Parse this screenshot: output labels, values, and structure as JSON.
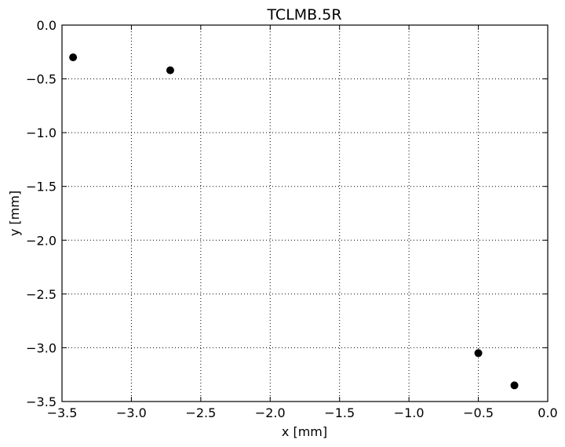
{
  "chart_data": {
    "type": "scatter",
    "title": "TCLMB.5R",
    "xlabel": "x [mm]",
    "ylabel": "y [mm]",
    "xlim": [
      -3.5,
      0.0
    ],
    "ylim": [
      -3.5,
      0.0
    ],
    "x_ticks": [
      -3.5,
      -3.0,
      -2.5,
      -2.0,
      -1.5,
      -1.0,
      -0.5,
      0.0
    ],
    "y_ticks": [
      -3.5,
      -3.0,
      -2.5,
      -2.0,
      -1.5,
      -1.0,
      -0.5,
      0.0
    ],
    "x_tick_labels": [
      "−3.5",
      "−3.0",
      "−2.5",
      "−2.0",
      "−1.5",
      "−1.0",
      "−0.5",
      "0.0"
    ],
    "y_tick_labels": [
      "−3.5",
      "−3.0",
      "−2.5",
      "−2.0",
      "−1.5",
      "−1.0",
      "−0.5",
      "0.0"
    ],
    "grid": true,
    "grid_style": "dotted",
    "marker_color": "#000000",
    "points": [
      {
        "x": -3.42,
        "y": -0.3
      },
      {
        "x": -2.72,
        "y": -0.42
      },
      {
        "x": -0.5,
        "y": -3.05
      },
      {
        "x": -0.24,
        "y": -3.35
      }
    ]
  }
}
